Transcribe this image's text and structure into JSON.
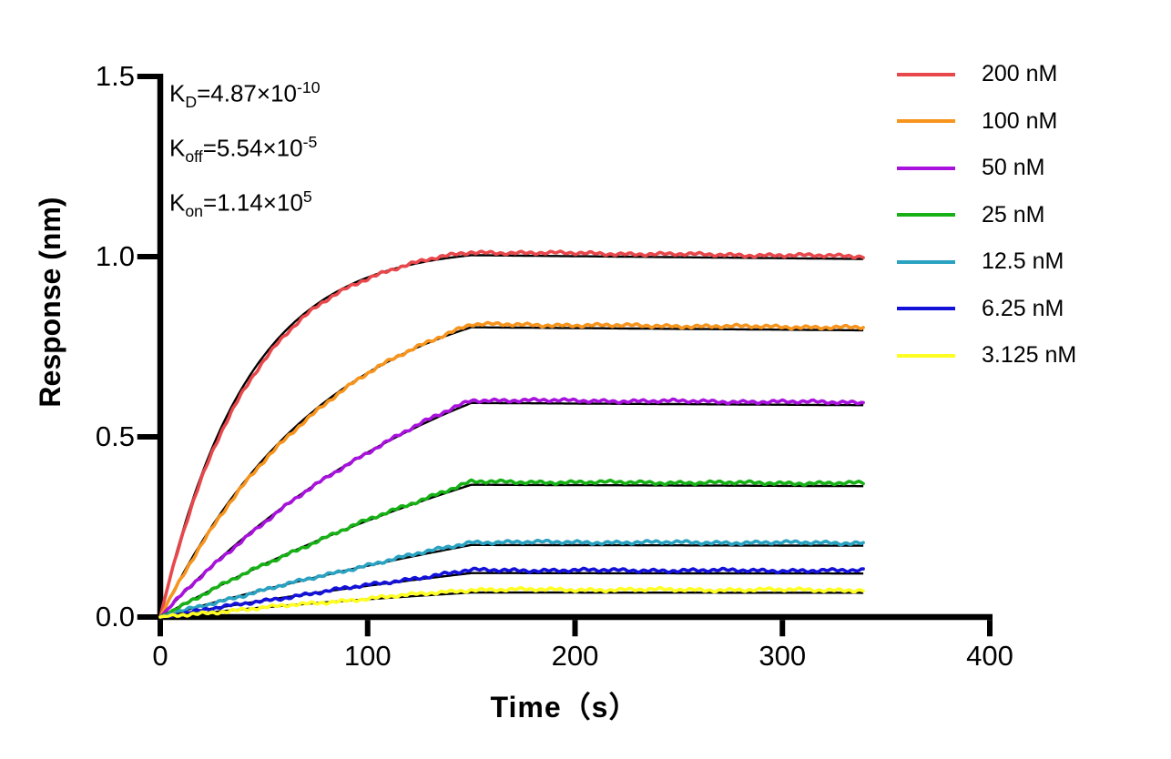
{
  "figure_name": "BLI binding kinetics sensorgram",
  "chart_data": {
    "type": "line",
    "title": "",
    "xlabel": "Time（s）",
    "ylabel": "Response (nm)",
    "xlim": [
      0,
      400
    ],
    "ylim": [
      0,
      1.5
    ],
    "x_ticks": [
      "0",
      "100",
      "200",
      "300",
      "400"
    ],
    "y_ticks": [
      "0.0",
      "0.5",
      "1.0",
      "1.5"
    ],
    "grid": false,
    "legend_position": "top-right-outside",
    "association_end_s": 150,
    "curve_end_s": 339,
    "koff_per_s": 5.54e-05,
    "fit_color": "#000000",
    "noise_amplitude_nm": 0.0028,
    "kinetics": {
      "KD": "4.87×10^-10",
      "Koff": "5.54×10^-5",
      "Kon": "1.14×10^5"
    },
    "series": [
      {
        "label": "200 nM",
        "conc_nM": 200,
        "color": "#E8484C",
        "plateau_nm": 1.012,
        "kobs_per_s": 0.0229
      },
      {
        "label": "100 nM",
        "conc_nM": 100,
        "color": "#F7941D",
        "plateau_nm": 0.812,
        "kobs_per_s": 0.0115
      },
      {
        "label": "50 nM",
        "conc_nM": 50,
        "color": "#A812DC",
        "plateau_nm": 0.602,
        "kobs_per_s": 0.0059
      },
      {
        "label": "25 nM",
        "conc_nM": 25,
        "color": "#17B117",
        "plateau_nm": 0.375,
        "kobs_per_s": 0.0031
      },
      {
        "label": "12.5 nM",
        "conc_nM": 12.5,
        "color": "#2AA2C1",
        "plateau_nm": 0.208,
        "kobs_per_s": 0.0016
      },
      {
        "label": "6.25 nM",
        "conc_nM": 6.25,
        "color": "#1412D9",
        "plateau_nm": 0.13,
        "kobs_per_s": 0.00086
      },
      {
        "label": "3.125 nM",
        "conc_nM": 3.125,
        "color": "#FEFE22",
        "plateau_nm": 0.076,
        "kobs_per_s": 0.00047
      }
    ]
  },
  "annotations": [
    {
      "pre": "K",
      "sub": "D",
      "mid": "=4.87×10",
      "sup": "-10"
    },
    {
      "pre": "K",
      "sub": "off",
      "mid": "=5.54×10",
      "sup": "-5"
    },
    {
      "pre": "K",
      "sub": "on",
      "mid": "=1.14×10",
      "sup": "5"
    }
  ],
  "axis_style": {
    "axis_color": "#000000",
    "axis_width": 6.5,
    "tick_width": 6,
    "x_tick_len": 18,
    "y_tick_len": 22
  }
}
